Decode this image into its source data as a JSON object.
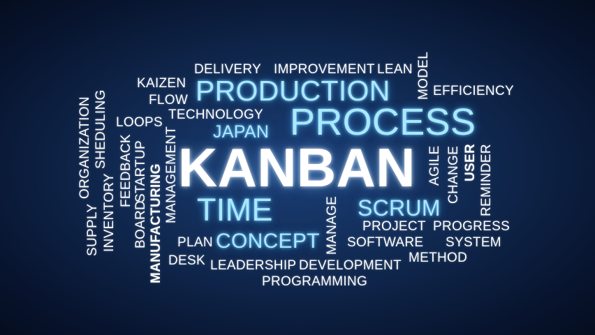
{
  "theme": {
    "background": "#0b1d3d",
    "text_color": "#ffffff",
    "highlight_color": "#a9e8ff"
  },
  "words": {
    "delivery": "DELIVERY",
    "improvement": "IMPROVEMENT",
    "lean": "LEAN",
    "model": "MODEL",
    "kaizen": "KAIZEN",
    "production": "PRODUCTION",
    "efficiency": "EFFICIENCY",
    "flow": "FLOW",
    "technology": "TECHNOLOGY",
    "process": "PROCESS",
    "loops": "LOOPS",
    "japan": "JAPAN",
    "shedding": "SHEDULING",
    "organization": "ORGANIZATION",
    "supply": "SUPPLY",
    "inventory": "INVENTORY",
    "feedback": "FEEDBACK",
    "board": "BOARD",
    "startup": "STARTUP",
    "manufacturing": "MANUFACTURING",
    "management": "MANAGEMENT",
    "kanban": "KANBAN",
    "agile": "AGILE",
    "change": "CHANGE",
    "user": "USER",
    "reminder": "REMINDER",
    "time": "TIME",
    "scrum": "SCRUM",
    "manage": "MANAGE",
    "project": "PROJECT",
    "progress": "PROGRESS",
    "plan": "PLAN",
    "concept": "CONCEPT",
    "software": "SOFTWARE",
    "system": "SYSTEM",
    "desk": "DESK",
    "leadership": "LEADERSHIP",
    "development": "DEVELOPMENT",
    "method": "METHOD",
    "programming": "PROGRAMMING"
  }
}
